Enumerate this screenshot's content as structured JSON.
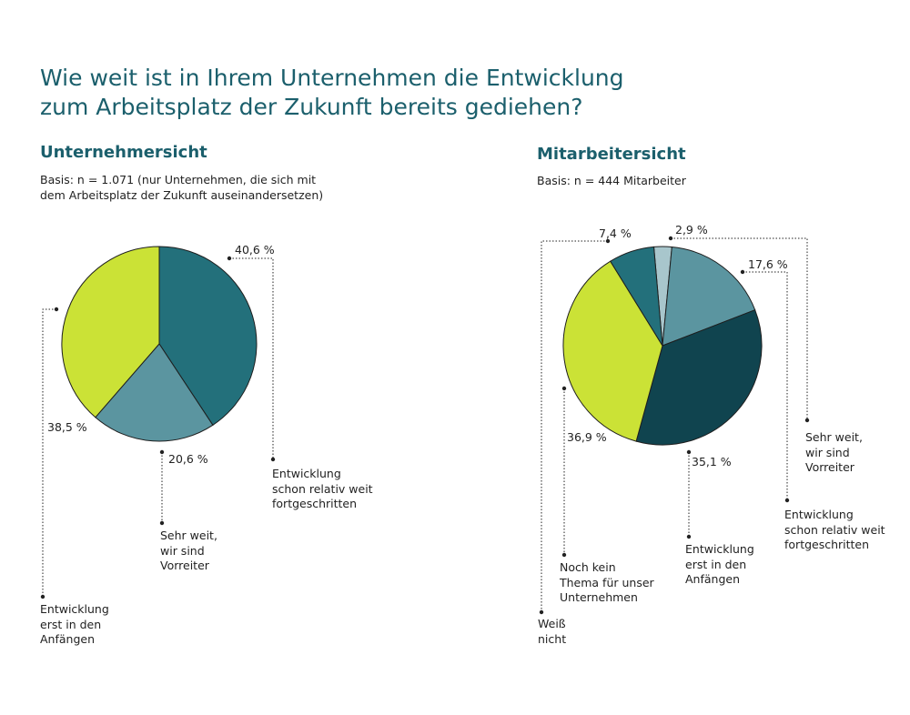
{
  "title": "Wie weit ist in Ihrem Unternehmen die Entwicklung\nzum Arbeitsplatz der Zukunft bereits gediehen?",
  "chart_data": [
    {
      "type": "pie",
      "title": "Unternehmersicht",
      "subtitle": "Basis: n = 1.071 (nur Unternehmen, die sich mit\ndem Arbeitsplatz der Zukunft auseinandersetzen)",
      "categories": [
        "Entwicklung\nschon relativ weit\nfortgeschritten",
        "Sehr weit,\nwir sind\nVorreiter",
        "Entwicklung\nerst in den\nAnfängen"
      ],
      "values": [
        40.6,
        20.6,
        38.5
      ],
      "value_labels": [
        "40,6 %",
        "20,6 %",
        "38,5 %"
      ],
      "colors": [
        "#23707b",
        "#5b95a0",
        "#cbe236"
      ]
    },
    {
      "type": "pie",
      "title": "Mitarbeitersicht",
      "subtitle": "Basis: n = 444 Mitarbeiter",
      "categories": [
        "Sehr weit,\nwir sind\nVorreiter",
        "Entwicklung\nschon relativ weit\nfortgeschritten",
        "Entwicklung\nerst in den\nAnfängen",
        "Noch kein\nThema für unser\nUnternehmen",
        "Weiß\nnicht"
      ],
      "values": [
        2.9,
        17.6,
        35.1,
        36.9,
        7.4
      ],
      "value_labels": [
        "2,9 %",
        "17,6 %",
        "35,1 %",
        "36,9 %",
        "7,4 %"
      ],
      "colors": [
        "#a8c6cc",
        "#5b95a0",
        "#10444f",
        "#cbe236",
        "#23707b"
      ]
    }
  ]
}
